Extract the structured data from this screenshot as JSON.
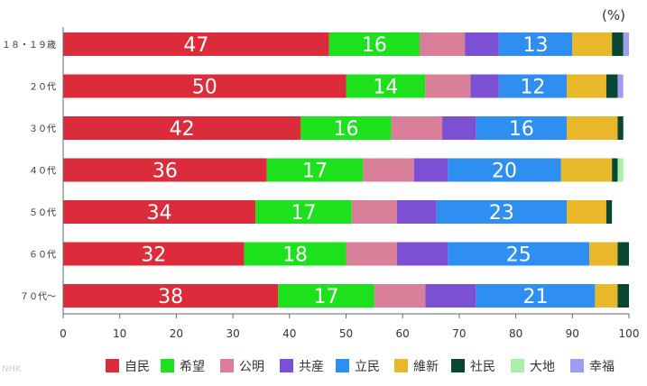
{
  "chart_data": {
    "type": "bar",
    "orientation": "horizontal",
    "stacked": true,
    "unit_label": "(%)",
    "categories": [
      "１８・１９歳",
      "２０代",
      "３０代",
      "４０代",
      "５０代",
      "６０代",
      "７０代～"
    ],
    "xlim": [
      0,
      100
    ],
    "xticks": [
      0,
      10,
      20,
      30,
      40,
      50,
      60,
      70,
      80,
      90,
      100
    ],
    "grid": false,
    "legend_position": "bottom",
    "series": [
      {
        "name": "自民",
        "color": "#dc2c3c",
        "values": [
          47,
          50,
          42,
          36,
          34,
          32,
          38
        ],
        "labels": [
          "47",
          "50",
          "42",
          "36",
          "34",
          "32",
          "38"
        ]
      },
      {
        "name": "希望",
        "color": "#1ee11e",
        "values": [
          16,
          14,
          16,
          17,
          17,
          18,
          17
        ],
        "labels": [
          "16",
          "14",
          "16",
          "17",
          "17",
          "18",
          "17"
        ]
      },
      {
        "name": "公明",
        "color": "#d97f9a",
        "values": [
          8,
          8,
          9,
          9,
          8,
          9,
          9
        ]
      },
      {
        "name": "共産",
        "color": "#7b50d2",
        "values": [
          6,
          5,
          6,
          6,
          7,
          9,
          9
        ]
      },
      {
        "name": "立民",
        "color": "#2e8ff0",
        "values": [
          13,
          12,
          16,
          20,
          23,
          25,
          21
        ],
        "labels": [
          "13",
          "12",
          "16",
          "20",
          "23",
          "25",
          "21"
        ]
      },
      {
        "name": "維新",
        "color": "#e8b72a",
        "values": [
          7,
          7,
          9,
          9,
          7,
          5,
          4
        ]
      },
      {
        "name": "社民",
        "color": "#0a4733",
        "values": [
          2,
          2,
          1,
          1,
          1,
          2,
          2
        ]
      },
      {
        "name": "大地",
        "color": "#a8f0a8",
        "values": [
          0,
          0,
          0,
          1,
          0,
          0,
          0
        ]
      },
      {
        "name": "幸福",
        "color": "#9e9ef0",
        "values": [
          1,
          1,
          0,
          0,
          0,
          0,
          0
        ]
      }
    ]
  },
  "watermark": "NHK"
}
